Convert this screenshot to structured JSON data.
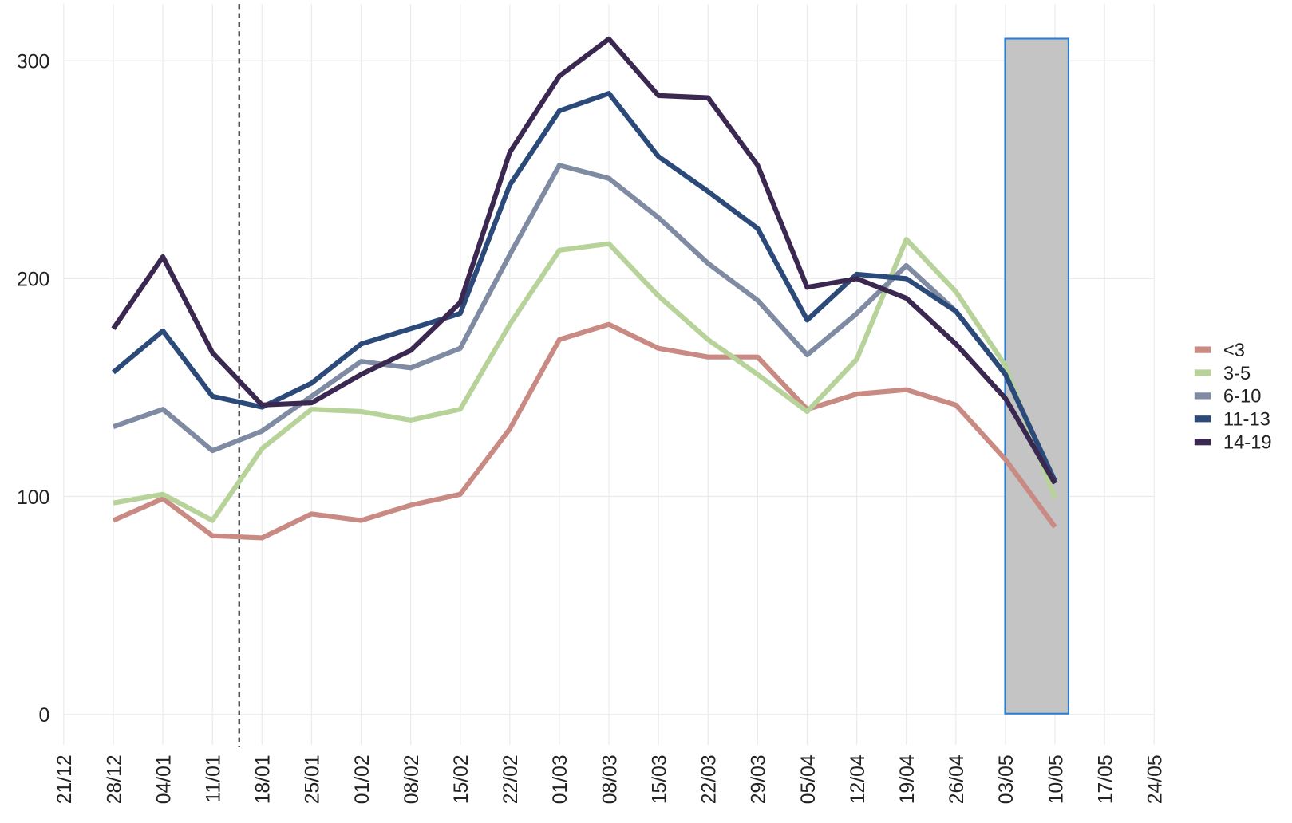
{
  "chart_data": {
    "type": "line",
    "categories": [
      "21/12",
      "28/12",
      "04/01",
      "11/01",
      "18/01",
      "25/01",
      "01/02",
      "08/02",
      "15/02",
      "22/02",
      "01/03",
      "08/03",
      "15/03",
      "22/03",
      "29/03",
      "05/04",
      "12/04",
      "19/04",
      "26/04",
      "03/05",
      "10/05",
      "17/05",
      "24/05"
    ],
    "series": [
      {
        "name": "<3",
        "color": "#c98a83",
        "values": [
          null,
          89,
          99,
          82,
          81,
          92,
          89,
          96,
          101,
          131,
          172,
          179,
          168,
          164,
          164,
          140,
          147,
          149,
          142,
          117,
          86,
          null,
          null
        ]
      },
      {
        "name": "3-5",
        "color": "#b7d39a",
        "values": [
          null,
          97,
          101,
          89,
          122,
          140,
          139,
          135,
          140,
          179,
          213,
          216,
          192,
          172,
          156,
          139,
          163,
          218,
          194,
          160,
          99,
          null,
          null
        ]
      },
      {
        "name": "6-10",
        "color": "#7f8ba2",
        "values": [
          null,
          132,
          140,
          121,
          130,
          146,
          162,
          159,
          168,
          211,
          252,
          246,
          228,
          207,
          190,
          165,
          184,
          206,
          185,
          156,
          107,
          null,
          null
        ]
      },
      {
        "name": "11-13",
        "color": "#2b4a7a",
        "values": [
          null,
          157,
          176,
          146,
          141,
          152,
          170,
          177,
          184,
          243,
          277,
          285,
          256,
          240,
          223,
          181,
          202,
          200,
          185,
          156,
          107,
          null,
          null
        ]
      },
      {
        "name": "14-19",
        "color": "#3b2850",
        "values": [
          null,
          177,
          210,
          166,
          142,
          143,
          156,
          167,
          189,
          258,
          293,
          310,
          284,
          283,
          252,
          196,
          200,
          191,
          170,
          145,
          106,
          null,
          null
        ]
      }
    ],
    "ylim": [
      -14,
      326
    ],
    "yticks": [
      0,
      100,
      200,
      300
    ],
    "grid": true,
    "legend": "right"
  }
}
